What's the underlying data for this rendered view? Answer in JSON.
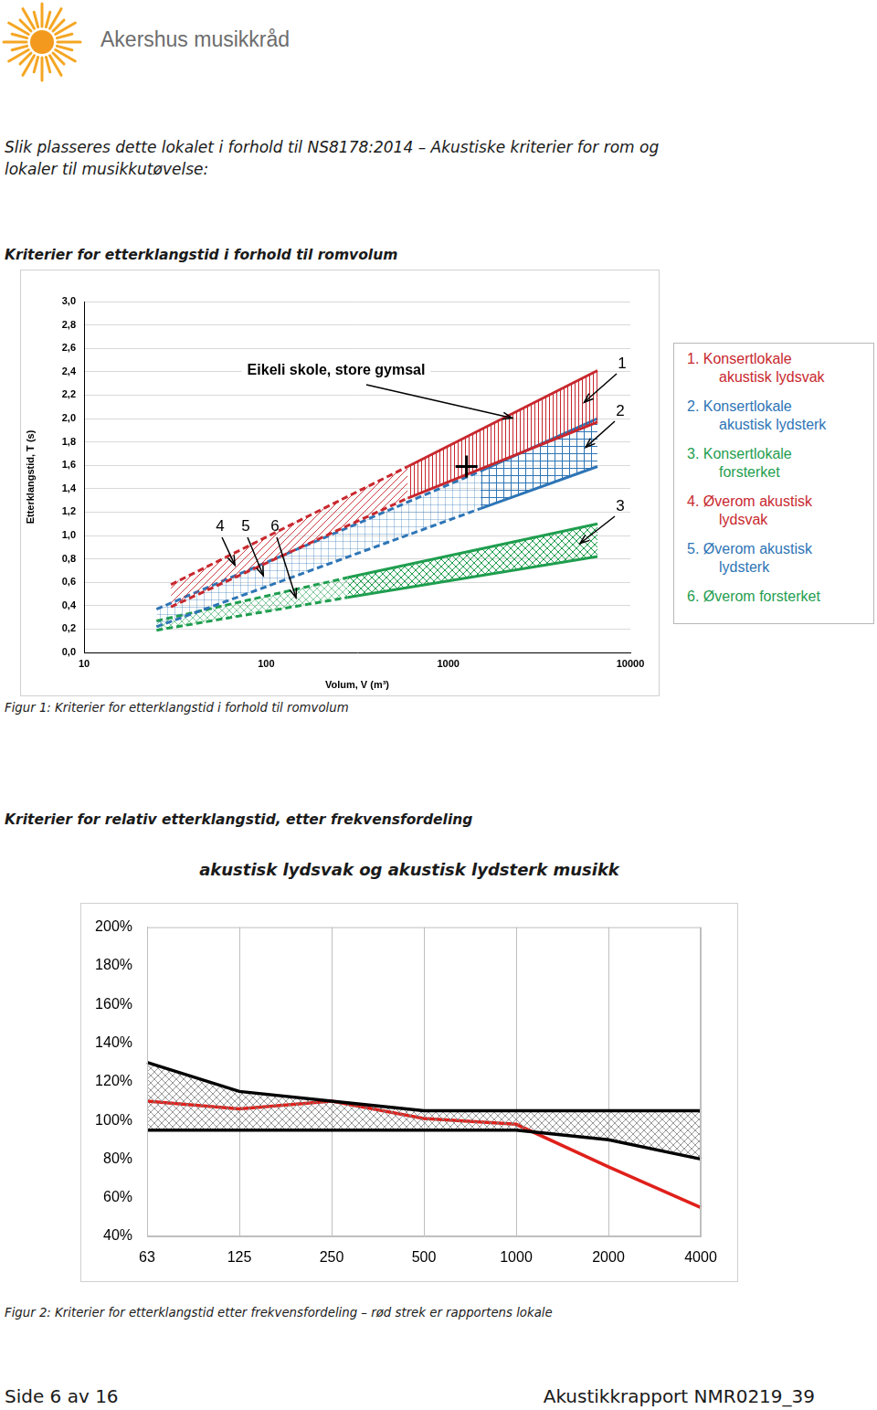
{
  "header": {
    "logo_text": "Akershus musikkråd"
  },
  "intro": [
    "Slik plasseres dette lokalet i forhold til NS8178:2014 – Akustiske kriterier for rom og",
    "lokaler til musikkutøvelse:"
  ],
  "section1_title": "Kriterier for etterklangstid i forhold til romvolum",
  "chart_data": [
    {
      "type": "area",
      "x_label": "Volum, V (m³)",
      "y_label": "Etterklangstid, T (s)",
      "log": "x",
      "xlim": [
        10,
        10000
      ],
      "xticks": [
        10,
        100,
        1000,
        10000
      ],
      "ylim": [
        0,
        3
      ],
      "yticks": [
        {
          "value": 0,
          "label": "0,0"
        },
        {
          "value": 0.2,
          "label": "0,2"
        },
        {
          "value": 0.4,
          "label": "0,4"
        },
        {
          "value": 0.6,
          "label": "0,6"
        },
        {
          "value": 0.8,
          "label": "0,8"
        },
        {
          "value": 1,
          "label": "1,0"
        },
        {
          "value": 1.2,
          "label": "1,2"
        },
        {
          "value": 1.4,
          "label": "1,4"
        },
        {
          "value": 1.6,
          "label": "1,6"
        },
        {
          "value": 1.8,
          "label": "1,8"
        },
        {
          "value": 2,
          "label": "2,0"
        },
        {
          "value": 2.2,
          "label": "2,2"
        },
        {
          "value": 2.4,
          "label": "2,4"
        },
        {
          "value": 2.6,
          "label": "2,6"
        },
        {
          "value": 2.8,
          "label": "2,8"
        },
        {
          "value": 3,
          "label": "3,0"
        }
      ],
      "grid": "y",
      "legend": "right",
      "annotation": "Eikeli skole, store gymsal",
      "points": [
        {
          "x": 1260,
          "y": 1.59,
          "marker": "cross"
        }
      ],
      "series": [
        {
          "name": "1. Konsertlokale akustisk lydsvak",
          "tag": "1",
          "color": "#c8282e",
          "line_style": "solid",
          "x": [
            600,
            6600
          ],
          "upper": [
            1.59,
            2.41
          ],
          "lower": [
            1.32,
            1.97
          ]
        },
        {
          "name": "2. Konsertlokale akustisk lydsterk",
          "tag": "2",
          "color": "#2e75b6",
          "line_style": "solid",
          "x": [
            1500,
            6600
          ],
          "upper": [
            1.55,
            2.0
          ],
          "lower": [
            1.23,
            1.59
          ]
        },
        {
          "name": "3. Konsertlokale forsterket",
          "tag": "3",
          "color": "#1f9e4f",
          "line_style": "solid",
          "x": [
            280,
            6600
          ],
          "upper": [
            0.64,
            1.1
          ],
          "lower": [
            0.47,
            0.82
          ]
        },
        {
          "name": "4. Øverom akustisk lydsvak",
          "tag": "4",
          "color": "#c8282e",
          "line_style": "dashed",
          "x": [
            30,
            600
          ],
          "upper": [
            0.58,
            1.59
          ],
          "lower": [
            0.39,
            1.32
          ]
        },
        {
          "name": "5. Øverom akustisk lydsterk",
          "tag": "5",
          "color": "#2e75b6",
          "line_style": "dashed",
          "x": [
            25,
            1500
          ],
          "upper": [
            0.37,
            1.55
          ],
          "lower": [
            0.22,
            1.23
          ]
        },
        {
          "name": "6. Øverom forsterket",
          "tag": "6",
          "color": "#1f9e4f",
          "line_style": "dashed",
          "x": [
            25,
            280
          ],
          "upper": [
            0.27,
            0.64
          ],
          "lower": [
            0.19,
            0.47
          ]
        }
      ]
    },
    {
      "type": "line",
      "title": "akustisk lydsvak og akustisk lydsterk musikk",
      "categories": [
        "63",
        "125",
        "250",
        "500",
        "1000",
        "2000",
        "4000"
      ],
      "ylim": [
        40,
        200
      ],
      "yticks": [
        {
          "value": 40,
          "label": "40%"
        },
        {
          "value": 60,
          "label": "60%"
        },
        {
          "value": 80,
          "label": "80%"
        },
        {
          "value": 100,
          "label": "100%"
        },
        {
          "value": 120,
          "label": "120%"
        },
        {
          "value": 140,
          "label": "140%"
        },
        {
          "value": 160,
          "label": "160%"
        },
        {
          "value": 180,
          "label": "180%"
        },
        {
          "value": 200,
          "label": "200%"
        }
      ],
      "grid": "x",
      "series": [
        {
          "color": "#000000",
          "values": [
            130,
            115,
            110,
            105,
            105,
            105,
            105
          ]
        },
        {
          "color": "#000000",
          "type": "area",
          "values": [
            95,
            95,
            95,
            95,
            95,
            90,
            80
          ]
        },
        {
          "color": "#e0201b",
          "values": [
            110,
            106,
            110,
            101,
            98,
            76,
            55
          ]
        }
      ]
    }
  ],
  "figure1_caption": "Figur 1: Kriterier for etterklangstid i forhold til romvolum",
  "section2_title": "Kriterier for relativ etterklangstid, etter frekvensfordeling",
  "figure2_caption": "Figur 2: Kriterier for etterklangstid etter frekvensfordeling – rød strek er rapportens lokale",
  "footer": {
    "left": "Side 6 av 16",
    "right": "Akustikkrapport NMR0219_39"
  }
}
